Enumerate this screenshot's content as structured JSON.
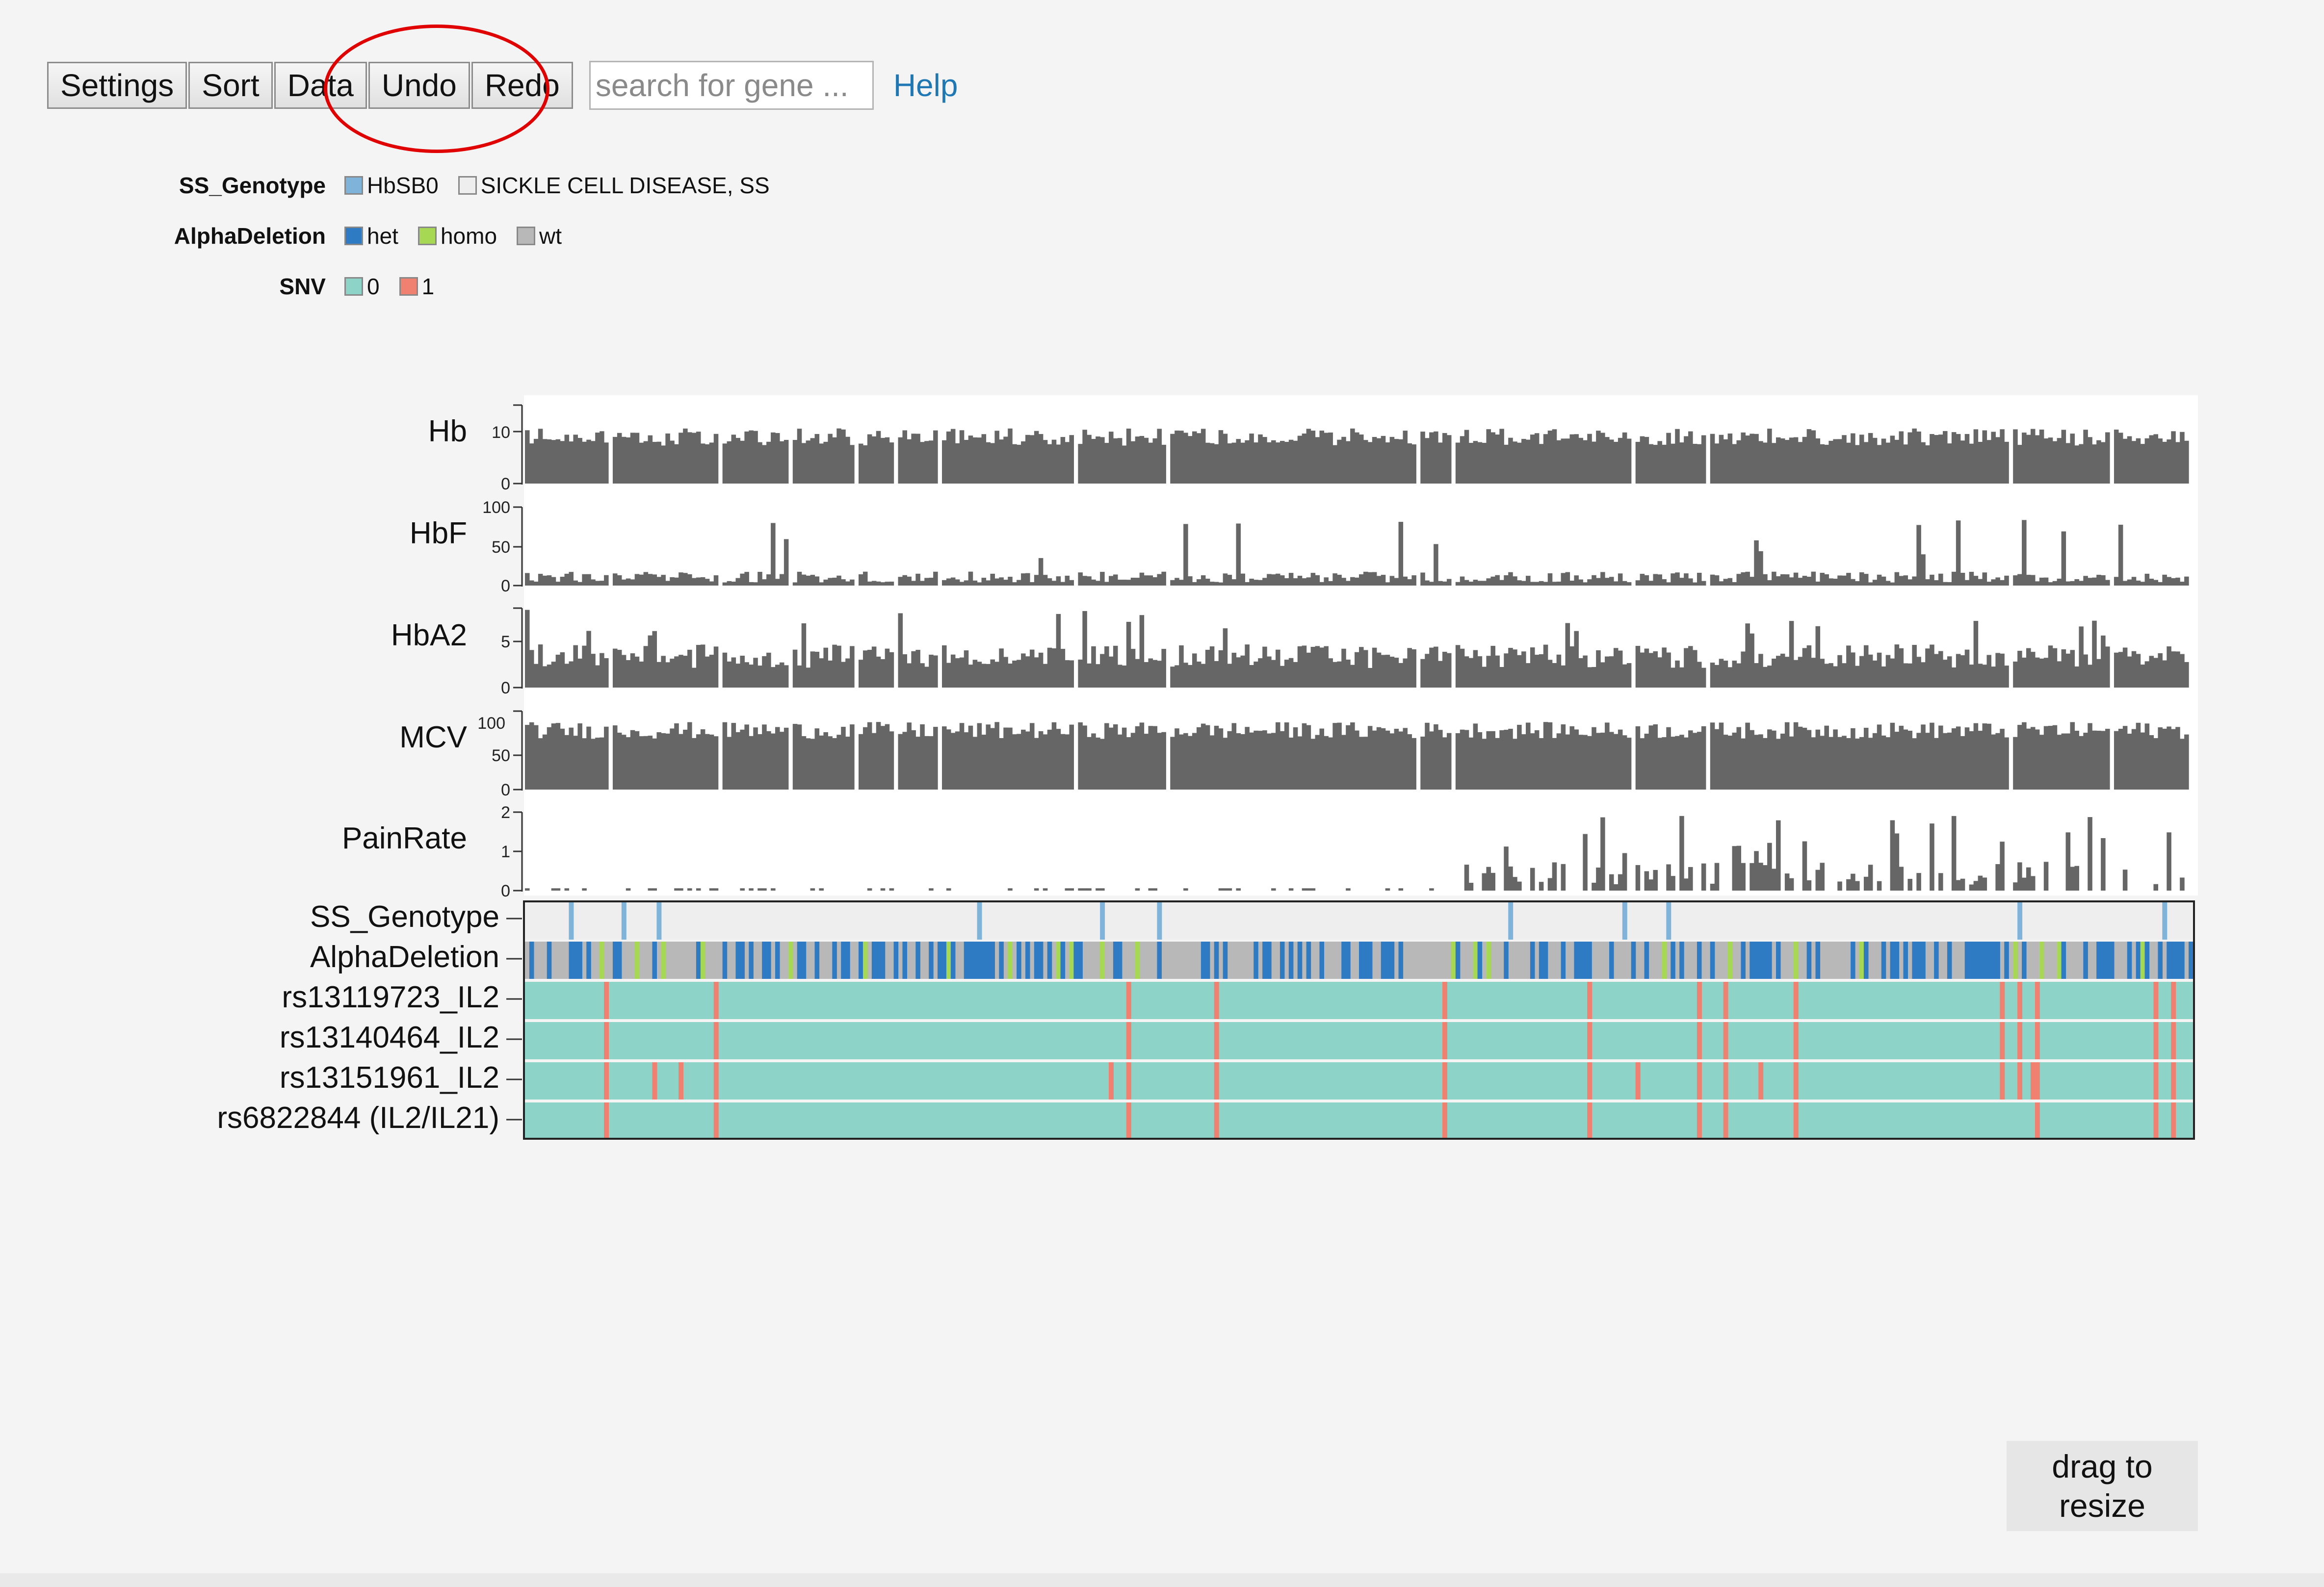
{
  "toolbar": {
    "buttons": [
      "Settings",
      "Sort",
      "Data",
      "Undo",
      "Redo"
    ],
    "search_placeholder": "search for gene ...",
    "help_label": "Help"
  },
  "legend": [
    {
      "title": "SS_Genotype",
      "items": [
        {
          "label": "HbSB0",
          "color": "#7fb3d9"
        },
        {
          "label": "SICKLE CELL DISEASE, SS",
          "color": "#eeeeee"
        }
      ]
    },
    {
      "title": "AlphaDeletion",
      "items": [
        {
          "label": "het",
          "color": "#2e7bc4"
        },
        {
          "label": "homo",
          "color": "#a6d854"
        },
        {
          "label": "wt",
          "color": "#b8b8b8"
        }
      ]
    },
    {
      "title": "SNV",
      "items": [
        {
          "label": "0",
          "color": "#8dd3c7"
        },
        {
          "label": "1",
          "color": "#f08070"
        }
      ]
    }
  ],
  "colors": {
    "bar": "#666666",
    "snv0": "#8dd3c7",
    "snv1": "#f08070",
    "genotype_bg": "#eeeeee",
    "genotype_mark": "#7fb3d9",
    "het": "#2e7bc4",
    "homo": "#a6d854",
    "wt": "#b8b8b8",
    "annotation": "#e00000"
  },
  "chart_data": {
    "type": "bar",
    "n_samples": 380,
    "tracks": [
      {
        "label": "Hb",
        "ticks": [
          "10",
          "0"
        ],
        "ylim": [
          0,
          12
        ]
      },
      {
        "label": "HbF",
        "ticks": [
          "100",
          "50",
          "0"
        ],
        "ylim": [
          0,
          100
        ]
      },
      {
        "label": "HbA2",
        "ticks": [
          "5",
          "0"
        ],
        "ylim": [
          0,
          8
        ]
      },
      {
        "label": "MCV",
        "ticks": [
          "100",
          "50",
          "0"
        ],
        "ylim": [
          0,
          110
        ]
      },
      {
        "label": "PainRate",
        "ticks": [
          "2",
          "1",
          "0"
        ],
        "ylim": [
          0,
          2
        ]
      }
    ],
    "heatmap_rows": [
      "SS_Genotype",
      "AlphaDeletion",
      "rs13119723_IL2",
      "rs13140464_IL2",
      "rs13151961_IL2",
      "rs6822844 (IL2/IL21)"
    ]
  },
  "drag_resize_label": [
    "drag to",
    "resize"
  ]
}
